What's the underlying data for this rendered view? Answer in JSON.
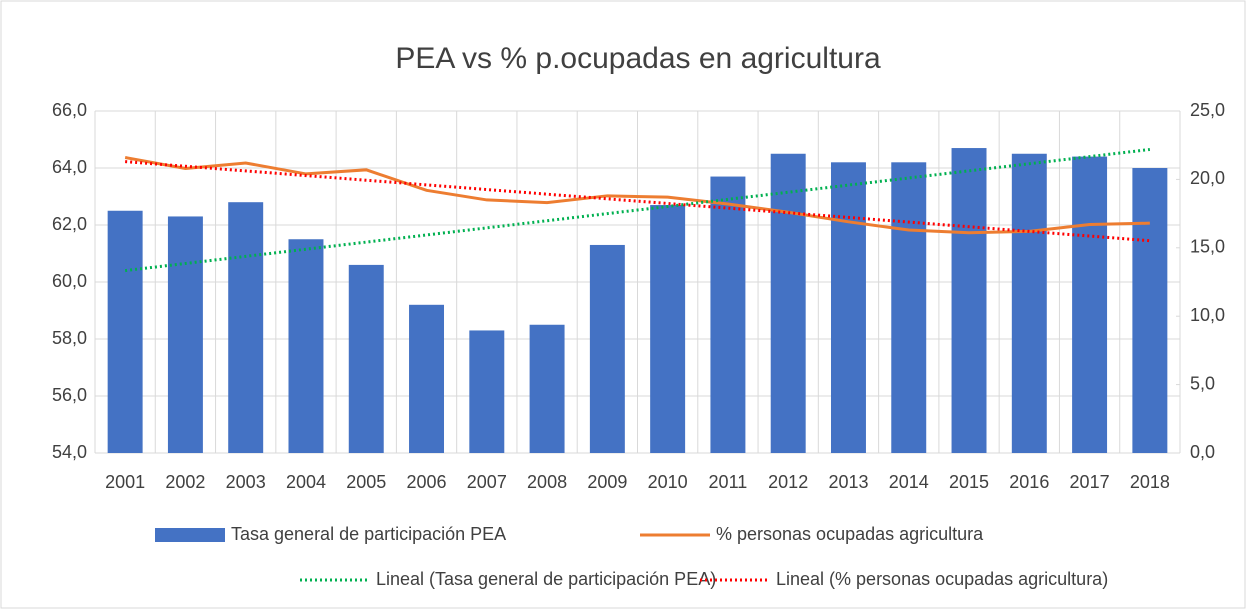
{
  "chart_data": {
    "type": "combo",
    "title": "PEA vs % p.ocupadas en agricultura",
    "categories": [
      "2001",
      "2002",
      "2003",
      "2004",
      "2005",
      "2006",
      "2007",
      "2008",
      "2009",
      "2010",
      "2011",
      "2012",
      "2013",
      "2014",
      "2015",
      "2016",
      "2017",
      "2018"
    ],
    "series": [
      {
        "name": "Tasa general de participación PEA",
        "kind": "bar",
        "axis": "y",
        "color": "#4472c4",
        "values": [
          62.5,
          62.3,
          62.8,
          61.5,
          60.6,
          59.2,
          58.3,
          58.5,
          61.3,
          62.7,
          63.7,
          64.5,
          64.2,
          64.2,
          64.7,
          64.5,
          64.4,
          64.0
        ]
      },
      {
        "name": "% personas ocupadas agricultura",
        "kind": "line",
        "axis": "y2",
        "color": "#ed7d31",
        "values": [
          21.6,
          20.8,
          21.2,
          20.4,
          20.7,
          19.2,
          18.5,
          18.3,
          18.8,
          18.7,
          18.2,
          17.6,
          16.9,
          16.3,
          16.1,
          16.2,
          16.7,
          16.8
        ]
      },
      {
        "name": "Lineal (Tasa general de participación PEA)",
        "kind": "trend",
        "axis": "y",
        "color": "#00b050",
        "values": [
          60.4,
          60.65,
          60.9,
          61.15,
          61.4,
          61.65,
          61.9,
          62.15,
          62.4,
          62.65,
          62.9,
          63.15,
          63.4,
          63.65,
          63.9,
          64.15,
          64.4,
          64.65
        ]
      },
      {
        "name": "Lineal (% personas ocupadas agricultura)",
        "kind": "trend",
        "axis": "y2",
        "color": "#ff0000",
        "values": [
          21.3,
          20.96,
          20.62,
          20.28,
          19.94,
          19.6,
          19.26,
          18.92,
          18.58,
          18.24,
          17.9,
          17.56,
          17.22,
          16.88,
          16.54,
          16.2,
          15.86,
          15.52
        ]
      }
    ],
    "ylim": [
      54,
      66
    ],
    "yticks": [
      {
        "value": 54,
        "label": "54,0"
      },
      {
        "value": 56,
        "label": "56,0"
      },
      {
        "value": 58,
        "label": "58,0"
      },
      {
        "value": 60,
        "label": "60,0"
      },
      {
        "value": 62,
        "label": "62,0"
      },
      {
        "value": 64,
        "label": "64,0"
      },
      {
        "value": 66,
        "label": "66,0"
      }
    ],
    "y2lim": [
      0,
      25
    ],
    "y2ticks": [
      {
        "value": 0,
        "label": "0,0"
      },
      {
        "value": 5,
        "label": "5,0"
      },
      {
        "value": 10,
        "label": "10,0"
      },
      {
        "value": 15,
        "label": "15,0"
      },
      {
        "value": 20,
        "label": "20,0"
      },
      {
        "value": 25,
        "label": "25,0"
      }
    ],
    "grid": true
  }
}
